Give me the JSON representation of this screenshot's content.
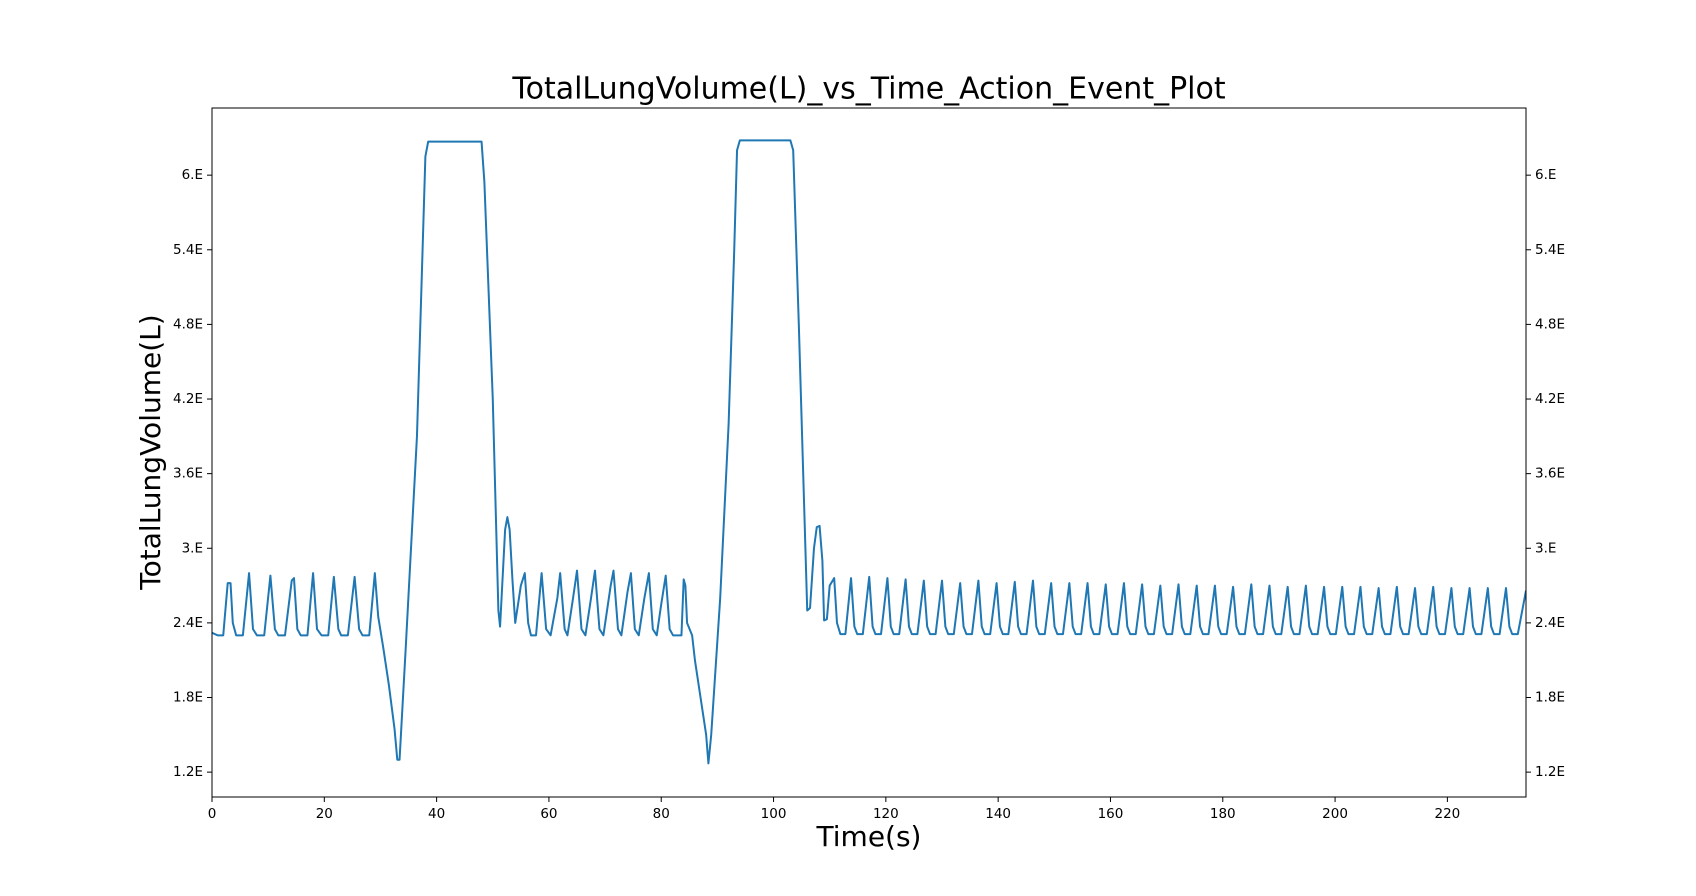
{
  "chart_data": {
    "type": "line",
    "title": "TotalLungVolume(L)_vs_Time_Action_Event_Plot",
    "x_label": "Time(s)",
    "y_label": "TotalLungVolume(L)",
    "xlim": [
      0,
      234
    ],
    "ylim": [
      1.0,
      6.54
    ],
    "xticks": [
      0,
      20,
      40,
      60,
      80,
      100,
      120,
      140,
      160,
      180,
      200,
      220
    ],
    "yticks": [
      {
        "value": 1.2,
        "label": "1.2E"
      },
      {
        "value": 1.8,
        "label": "1.8E"
      },
      {
        "value": 2.4,
        "label": "2.4E"
      },
      {
        "value": 3.0,
        "label": "3.E"
      },
      {
        "value": 3.6,
        "label": "3.6E"
      },
      {
        "value": 4.2,
        "label": "4.2E"
      },
      {
        "value": 4.8,
        "label": "4.8E"
      },
      {
        "value": 5.4,
        "label": "5.4E"
      },
      {
        "value": 6.0,
        "label": "6.E"
      }
    ],
    "right_ticks": true,
    "grid": false,
    "x": [
      0,
      1,
      2,
      2.8,
      3.3,
      3.7,
      4.3,
      5.5,
      6.6,
      7.3,
      8,
      9.3,
      10.4,
      11.2,
      11.8,
      13,
      14.2,
      14.6,
      15.2,
      15.8,
      17,
      18,
      18.7,
      19.5,
      20.7,
      21.7,
      22.5,
      23,
      24.2,
      25.4,
      26.2,
      26.8,
      28,
      29,
      29.6,
      30.5,
      31.5,
      32.5,
      33,
      33.4,
      34.5,
      36.5,
      38,
      38.5,
      48,
      48.5,
      50,
      51,
      51.3,
      52.2,
      52.6,
      53,
      53.5,
      54,
      55,
      55.7,
      56.3,
      56.8,
      57.7,
      58.7,
      59.5,
      60.3,
      61.5,
      62,
      62.8,
      63.3,
      64.3,
      65,
      65.8,
      66.5,
      67.5,
      68.2,
      69,
      69.7,
      71,
      71.5,
      72.3,
      72.9,
      74,
      74.6,
      75.3,
      76,
      77,
      77.8,
      78.5,
      79.2,
      80,
      80.8,
      81.5,
      82.1,
      83.6,
      84,
      84.3,
      84.6,
      85.5,
      86,
      87,
      88,
      88.4,
      88.9,
      90.5,
      92,
      93,
      93.5,
      94,
      103,
      103.5,
      104.5,
      106,
      106.5,
      107.2,
      107.7,
      108.2,
      108.7,
      109,
      109.5,
      110,
      110.8,
      111.3,
      111.9,
      112.8,
      113.8,
      114.4,
      114.9,
      115.9,
      117.04,
      117.64,
      118.14,
      119.14,
      120.28,
      120.88,
      121.38,
      122.38,
      123.52,
      124.12,
      124.62,
      125.62,
      126.76,
      127.36,
      127.86,
      128.86,
      130,
      130.6,
      131.1,
      132.1,
      133.24,
      133.84,
      134.34,
      135.34,
      136.48,
      137.08,
      137.58,
      138.58,
      139.72,
      140.32,
      140.82,
      141.82,
      142.96,
      143.56,
      144.06,
      145.06,
      146.2,
      146.8,
      147.3,
      148.3,
      149.44,
      150.04,
      150.54,
      151.54,
      152.68,
      153.28,
      153.78,
      154.78,
      155.92,
      156.52,
      157.02,
      158.02,
      159.16,
      159.76,
      160.26,
      161.26,
      162.4,
      163,
      163.5,
      164.5,
      165.64,
      166.24,
      166.74,
      167.74,
      168.88,
      169.48,
      169.98,
      170.98,
      172.12,
      172.72,
      173.22,
      174.22,
      175.36,
      175.96,
      176.46,
      177.46,
      178.6,
      179.2,
      179.7,
      180.7,
      181.84,
      182.44,
      182.94,
      183.94,
      185.08,
      185.68,
      186.18,
      187.18,
      188.32,
      188.92,
      189.42,
      190.42,
      191.56,
      192.16,
      192.66,
      193.66,
      194.8,
      195.4,
      195.9,
      196.9,
      198.04,
      198.64,
      199.14,
      200.14,
      201.28,
      201.88,
      202.38,
      203.38,
      204.52,
      205.12,
      205.62,
      206.62,
      207.76,
      208.36,
      208.86,
      209.86,
      211,
      211.6,
      212.1,
      213.1,
      214.24,
      214.84,
      215.34,
      216.34,
      217.48,
      218.08,
      218.58,
      219.58,
      220.72,
      221.32,
      221.82,
      222.82,
      223.96,
      224.56,
      225.06,
      226.06,
      227.2,
      227.8,
      228.3,
      229.3,
      230.44,
      231.04,
      231.54,
      232.54,
      234
    ],
    "series": [
      {
        "name": "TotalLungVolume(L)",
        "color": "#1f77b4",
        "values": [
          2.32,
          2.3,
          2.3,
          2.72,
          2.72,
          2.4,
          2.3,
          2.3,
          2.8,
          2.35,
          2.3,
          2.3,
          2.78,
          2.35,
          2.3,
          2.3,
          2.74,
          2.76,
          2.35,
          2.3,
          2.3,
          2.8,
          2.35,
          2.3,
          2.3,
          2.77,
          2.35,
          2.3,
          2.3,
          2.77,
          2.35,
          2.3,
          2.3,
          2.8,
          2.45,
          2.2,
          1.9,
          1.55,
          1.3,
          1.3,
          2.2,
          3.9,
          6.15,
          6.27,
          6.27,
          5.95,
          4.2,
          2.5,
          2.37,
          3.15,
          3.25,
          3.15,
          2.75,
          2.4,
          2.7,
          2.8,
          2.4,
          2.3,
          2.3,
          2.8,
          2.35,
          2.3,
          2.6,
          2.8,
          2.35,
          2.3,
          2.6,
          2.82,
          2.35,
          2.3,
          2.6,
          2.82,
          2.35,
          2.3,
          2.7,
          2.82,
          2.35,
          2.3,
          2.65,
          2.8,
          2.35,
          2.3,
          2.6,
          2.8,
          2.35,
          2.3,
          2.55,
          2.78,
          2.35,
          2.3,
          2.3,
          2.75,
          2.7,
          2.4,
          2.3,
          2.1,
          1.8,
          1.5,
          1.27,
          1.5,
          2.6,
          4.0,
          5.4,
          6.2,
          6.28,
          6.28,
          6.2,
          4.8,
          2.5,
          2.52,
          3.0,
          3.17,
          3.18,
          2.9,
          2.42,
          2.43,
          2.7,
          2.76,
          2.4,
          2.31,
          2.31,
          2.76,
          2.37,
          2.31,
          2.31,
          2.77,
          2.37,
          2.31,
          2.31,
          2.76,
          2.37,
          2.31,
          2.31,
          2.75,
          2.37,
          2.31,
          2.31,
          2.74,
          2.37,
          2.31,
          2.31,
          2.74,
          2.37,
          2.31,
          2.31,
          2.72,
          2.37,
          2.31,
          2.31,
          2.74,
          2.37,
          2.31,
          2.31,
          2.72,
          2.37,
          2.31,
          2.31,
          2.73,
          2.37,
          2.31,
          2.31,
          2.74,
          2.37,
          2.31,
          2.31,
          2.72,
          2.37,
          2.31,
          2.31,
          2.72,
          2.37,
          2.31,
          2.31,
          2.72,
          2.37,
          2.31,
          2.31,
          2.71,
          2.37,
          2.31,
          2.31,
          2.72,
          2.37,
          2.31,
          2.31,
          2.71,
          2.37,
          2.31,
          2.31,
          2.7,
          2.37,
          2.31,
          2.31,
          2.71,
          2.37,
          2.31,
          2.31,
          2.7,
          2.37,
          2.31,
          2.31,
          2.7,
          2.37,
          2.31,
          2.31,
          2.69,
          2.37,
          2.31,
          2.31,
          2.71,
          2.37,
          2.31,
          2.31,
          2.7,
          2.37,
          2.31,
          2.31,
          2.69,
          2.37,
          2.31,
          2.31,
          2.7,
          2.37,
          2.31,
          2.31,
          2.69,
          2.37,
          2.31,
          2.31,
          2.69,
          2.37,
          2.31,
          2.31,
          2.69,
          2.37,
          2.31,
          2.31,
          2.68,
          2.37,
          2.31,
          2.31,
          2.69,
          2.37,
          2.31,
          2.31,
          2.68,
          2.37,
          2.31,
          2.31,
          2.69,
          2.37,
          2.31,
          2.31,
          2.68,
          2.37,
          2.31,
          2.31,
          2.68,
          2.37,
          2.31,
          2.31,
          2.68,
          2.37,
          2.31,
          2.31,
          2.68,
          2.37,
          2.31,
          2.31,
          2.66
        ]
      }
    ]
  }
}
